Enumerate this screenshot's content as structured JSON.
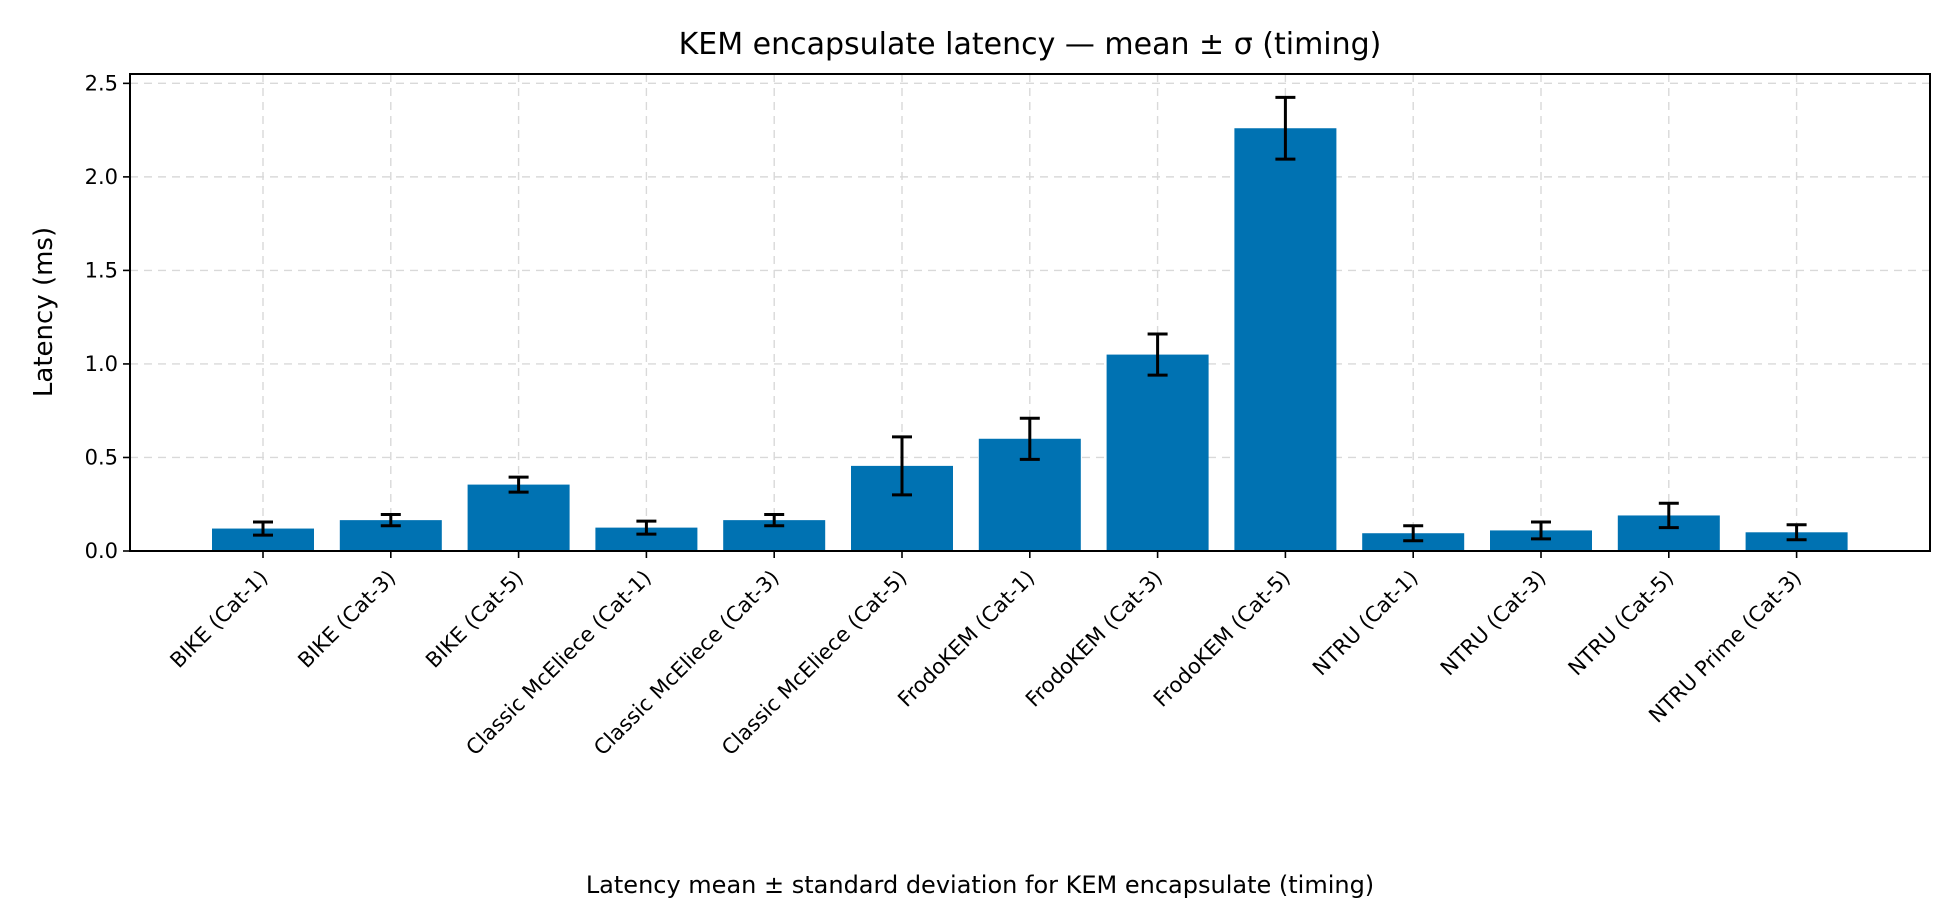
{
  "chart_data": {
    "type": "bar",
    "title": "KEM encapsulate latency — mean ± σ (timing)",
    "ylabel": "Latency (ms)",
    "xlabel": "",
    "caption": "Latency mean ± standard deviation for KEM encapsulate (timing)",
    "ylim": [
      0,
      2.55
    ],
    "yticks": [
      "0.0",
      "0.5",
      "1.0",
      "1.5",
      "2.0",
      "2.5"
    ],
    "yticks_values": [
      0,
      0.5,
      1.0,
      1.5,
      2.0,
      2.5
    ],
    "grid": true,
    "bar_color": "#0072b2",
    "categories": [
      "BIKE (Cat-1)",
      "BIKE (Cat-3)",
      "BIKE (Cat-5)",
      "Classic McEliece (Cat-1)",
      "Classic McEliece (Cat-3)",
      "Classic McEliece (Cat-5)",
      "FrodoKEM (Cat-1)",
      "FrodoKEM (Cat-3)",
      "FrodoKEM (Cat-5)",
      "NTRU (Cat-1)",
      "NTRU (Cat-3)",
      "NTRU (Cat-5)",
      "NTRU Prime (Cat-3)"
    ],
    "values": [
      0.12,
      0.165,
      0.355,
      0.125,
      0.165,
      0.455,
      0.6,
      1.05,
      2.26,
      0.095,
      0.11,
      0.19,
      0.1
    ],
    "errors": [
      0.035,
      0.03,
      0.04,
      0.035,
      0.03,
      0.155,
      0.11,
      0.11,
      0.165,
      0.04,
      0.045,
      0.065,
      0.04
    ]
  }
}
